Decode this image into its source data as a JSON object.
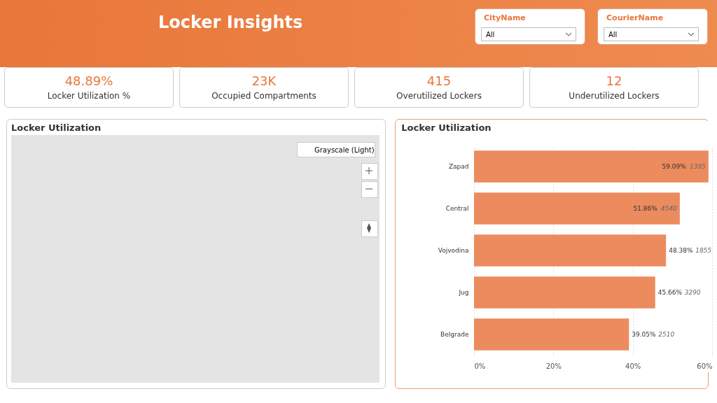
{
  "chart_data": [
    {
      "type": "other",
      "title": "Locker Insights",
      "annotations": [
        "CityName",
        "All",
        "CourierName",
        "All",
        "48.89%",
        "Locker Utilization %",
        "23K",
        "Occupied Compartments",
        "415",
        "Overutilized Lockers",
        "12",
        "Underutilized Lockers"
      ]
    },
    {
      "type": "other",
      "title": "Locker Utilization",
      "annotations": [
        "Grayscale (Light)"
      ]
    },
    {
      "type": "bar",
      "title": "Locker Utilization",
      "orientation": "horizontal",
      "categories": [
        "Zapad",
        "Central",
        "Vojvodina",
        "Jug",
        "Belgrade"
      ],
      "values": [
        59.09,
        51.86,
        48.38,
        45.66,
        39.05
      ],
      "value_labels": [
        "59.09%",
        "51.86%",
        "48.38%",
        "45.66%",
        "39.05%"
      ],
      "color": "#ec8b5e",
      "xlim": [
        0,
        60
      ],
      "xticks": [
        {
          "value": 0,
          "label": "0%"
        },
        {
          "value": 20,
          "label": "20%"
        },
        {
          "value": 40,
          "label": "40%"
        },
        {
          "value": 60,
          "label": "60%"
        }
      ],
      "grid": "x",
      "annotations": [
        "1395",
        "4540",
        "1855",
        "3290",
        "2510"
      ]
    }
  ]
}
